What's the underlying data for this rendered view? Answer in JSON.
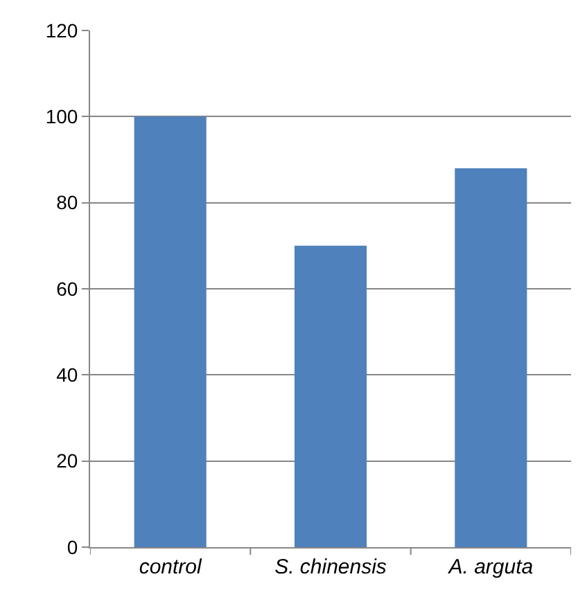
{
  "chart_data": {
    "type": "bar",
    "categories": [
      "control",
      "S. chinensis",
      "A. arguta"
    ],
    "values": [
      100,
      70,
      88
    ],
    "color": "#4f81bd",
    "ylim": [
      0,
      120
    ],
    "yticks": [
      0,
      20,
      40,
      60,
      80,
      100,
      120
    ],
    "grid": "y"
  }
}
